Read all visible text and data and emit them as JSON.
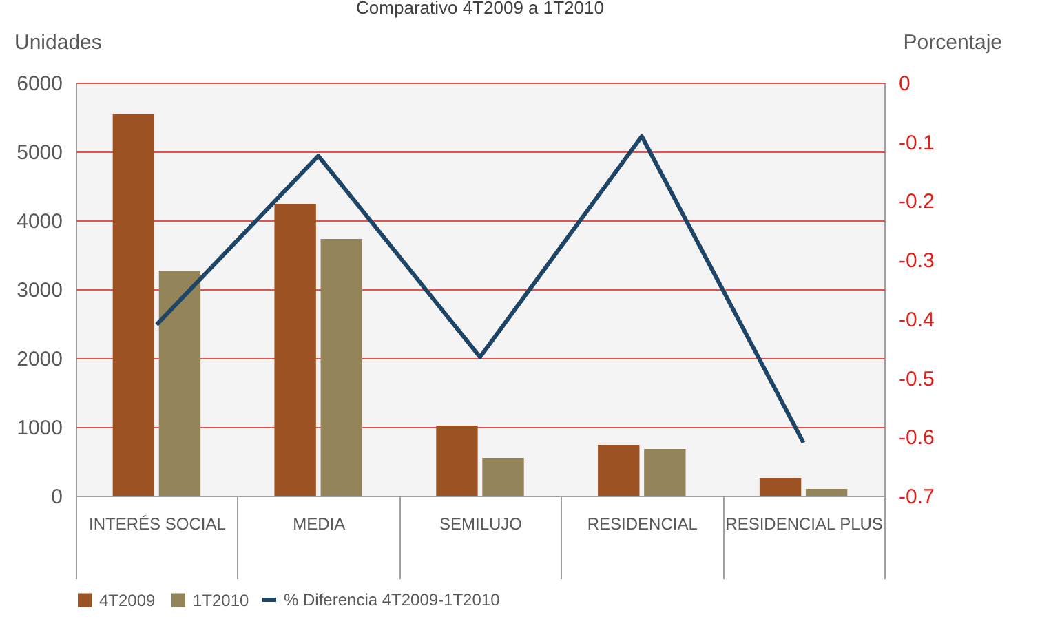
{
  "chart_data": {
    "type": "bar",
    "title": "Comparativo 4T2009 a 1T2010",
    "ylabel": "Unidades",
    "y2label": "Porcentaje",
    "categories": [
      "INTERÉS  SOCIAL",
      "MEDIA",
      "SEMILUJO",
      "RESIDENCIAL",
      "RESIDENCIAL PLUS"
    ],
    "series": [
      {
        "name": "4T2009",
        "color": "#9c5223",
        "values": [
          5550,
          4240,
          1020,
          740,
          260
        ]
      },
      {
        "name": "1T2010",
        "color": "#94845a",
        "values": [
          3270,
          3730,
          550,
          680,
          100
        ]
      },
      {
        "name": "% Diferencia 4T2009-1T2010",
        "type": "line",
        "axis": "y2",
        "color": "#1f4566",
        "values": [
          -0.41,
          -0.124,
          -0.465,
          -0.091,
          -0.61
        ]
      }
    ],
    "ylim": [
      0,
      6000
    ],
    "yticks": [
      0,
      1000,
      2000,
      3000,
      4000,
      5000,
      6000
    ],
    "y2lim": [
      -0.7,
      0
    ],
    "y2ticks": [
      0,
      -0.1,
      -0.2,
      -0.3,
      -0.4,
      -0.5,
      -0.6,
      -0.7
    ],
    "grid": "y",
    "legend": "bottom"
  }
}
